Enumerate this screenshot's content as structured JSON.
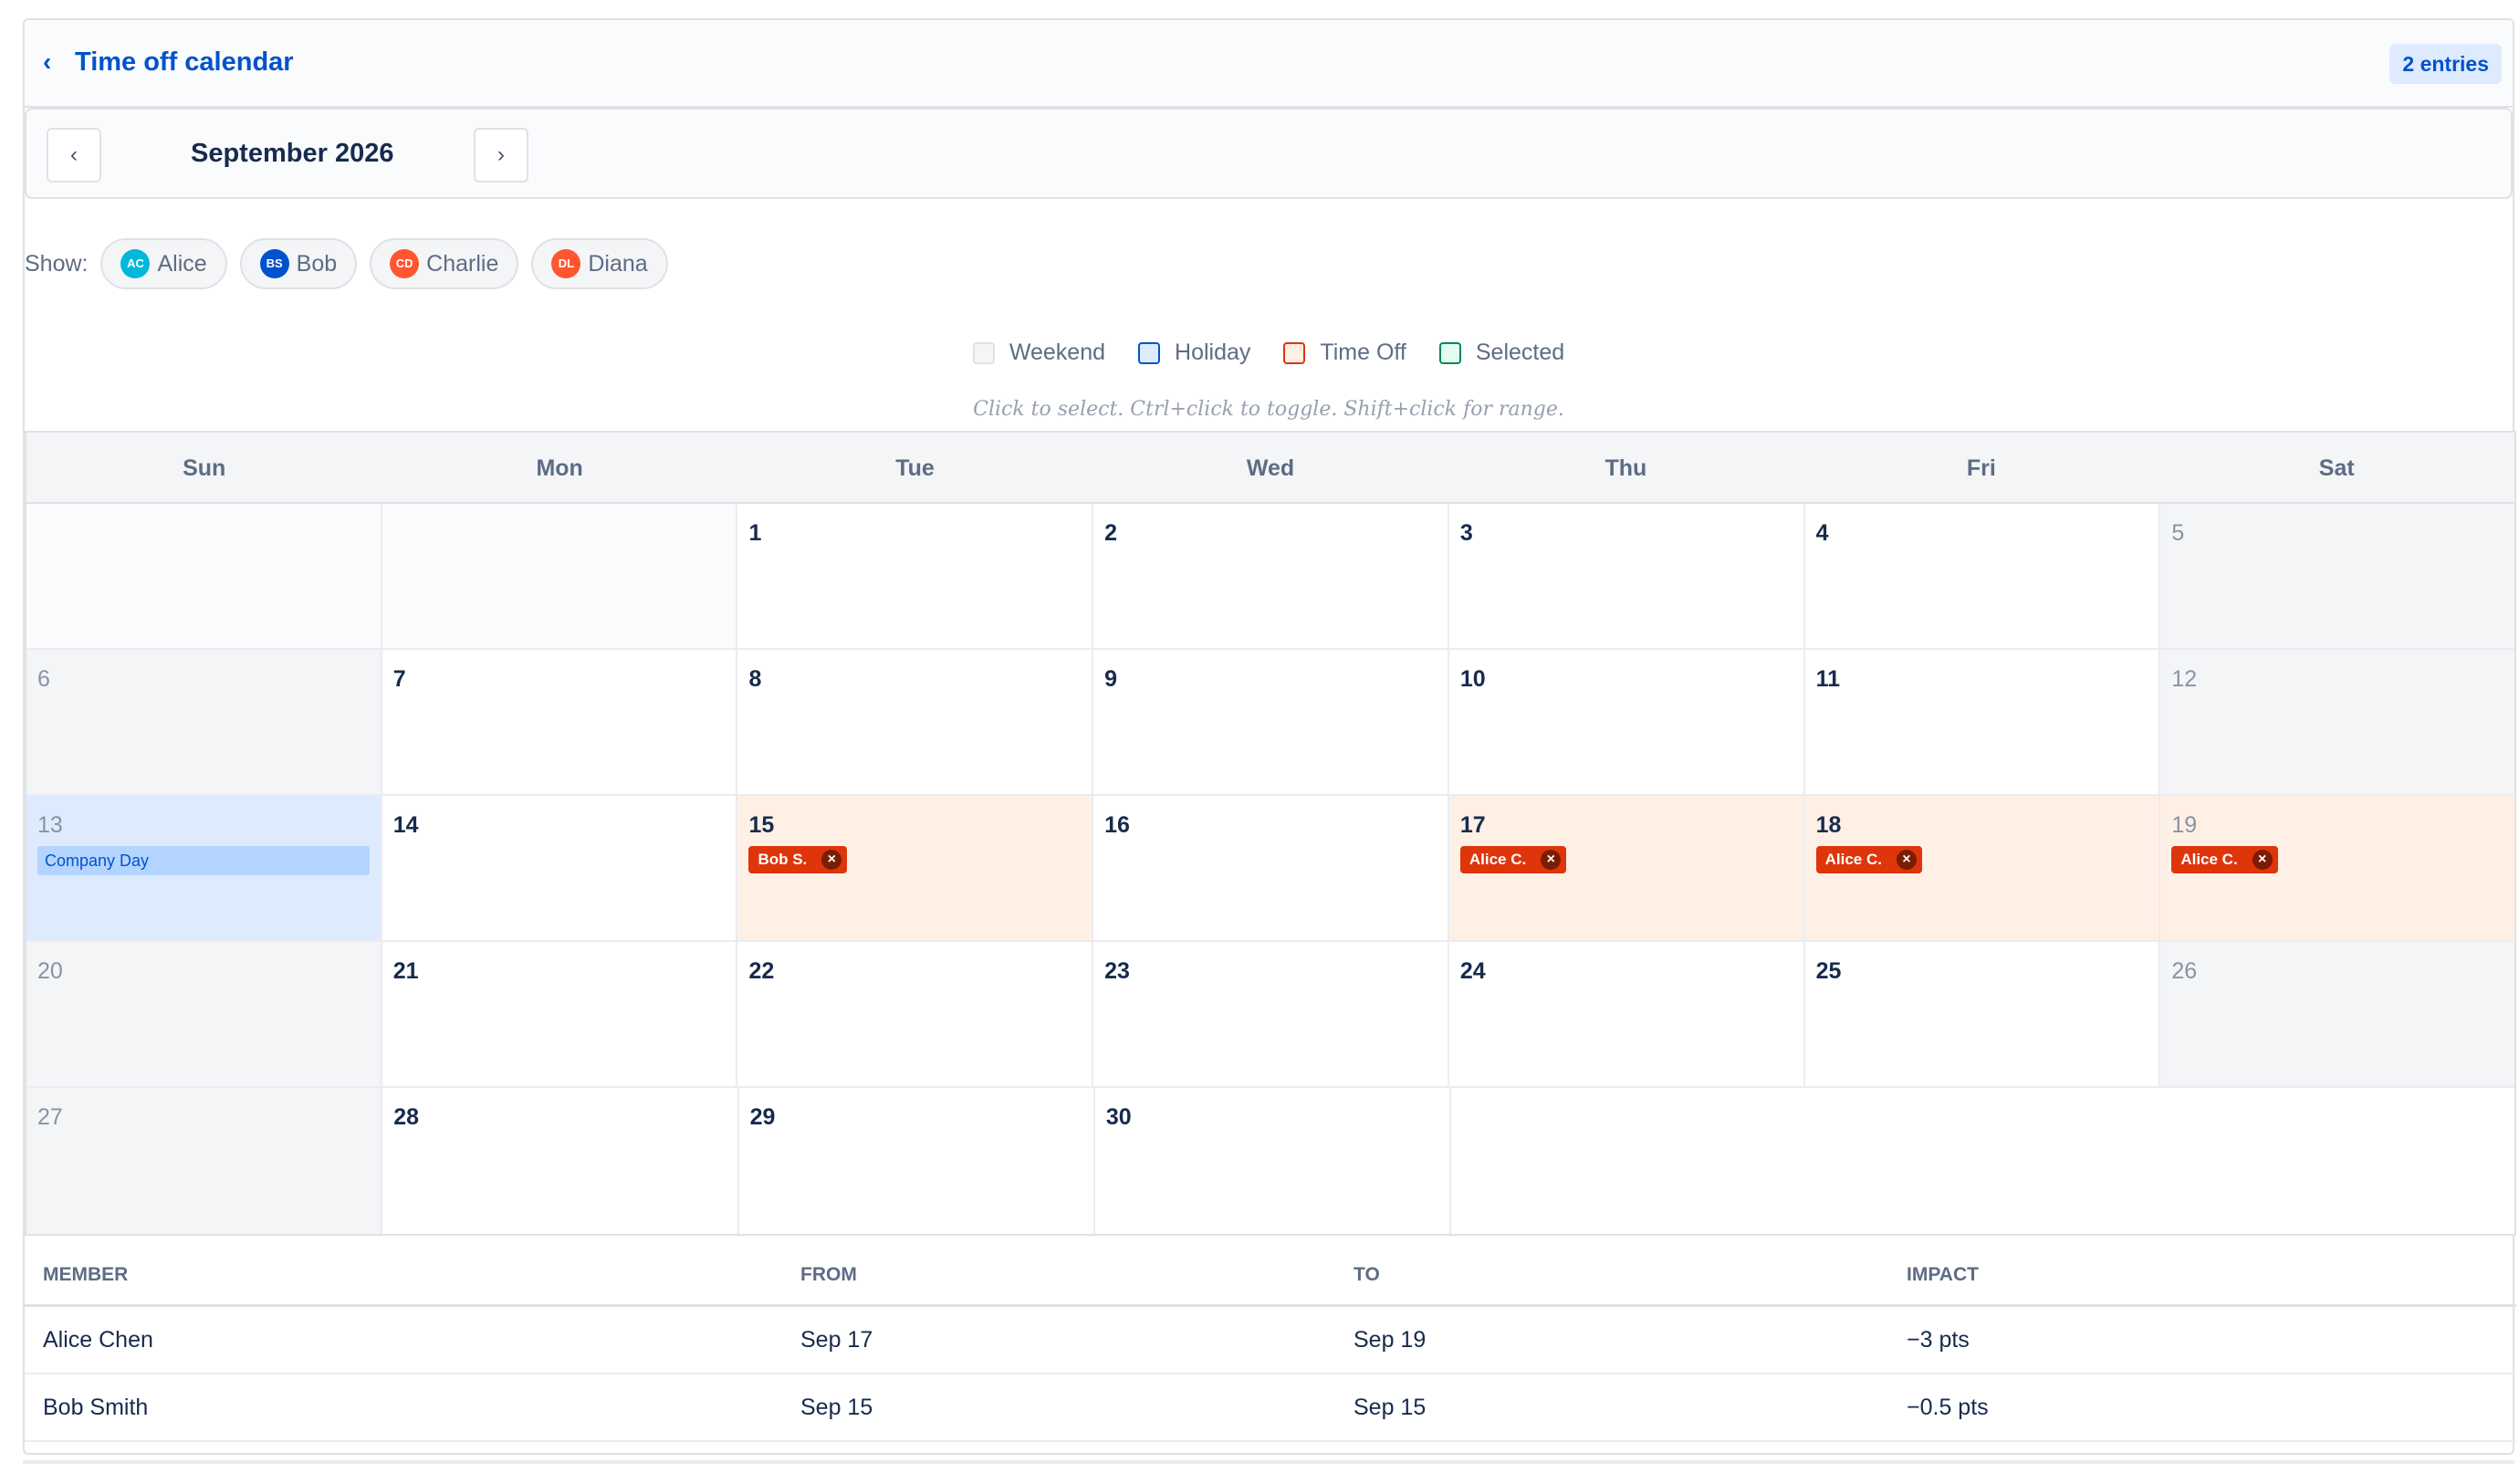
{
  "header": {
    "title": "Time off calendar",
    "entries_badge": "2 entries",
    "back_icon": "chevron-left-icon"
  },
  "nav": {
    "prev": "‹",
    "next": "›",
    "month": "September 2026"
  },
  "show": {
    "label": "Show:",
    "members": [
      {
        "initials": "AC",
        "name": "Alice",
        "color": "#00b8d9"
      },
      {
        "initials": "BS",
        "name": "Bob",
        "color": "#0052cc"
      },
      {
        "initials": "CD",
        "name": "Charlie",
        "color": "#ff5630"
      },
      {
        "initials": "DL",
        "name": "Diana",
        "color": "#ff5630"
      }
    ]
  },
  "legend": [
    {
      "label": "Weekend",
      "fill": "#f4f5f7",
      "border": "#dfe1e6"
    },
    {
      "label": "Holiday",
      "fill": "#deebff",
      "border": "#0052cc"
    },
    {
      "label": "Time Off",
      "fill": "#fff0e6",
      "border": "#de350b"
    },
    {
      "label": "Selected",
      "fill": "#e3fcef",
      "border": "#00875a"
    }
  ],
  "hint": "Click to select. Ctrl+click to toggle. Shift+click for range.",
  "weekdays": [
    "Sun",
    "Mon",
    "Tue",
    "Wed",
    "Thu",
    "Fri",
    "Sat"
  ],
  "weeks": [
    [
      {
        "empty": true
      },
      {
        "empty": true
      },
      {
        "num": "1"
      },
      {
        "num": "2"
      },
      {
        "num": "3"
      },
      {
        "num": "4"
      },
      {
        "num": "5",
        "weekend": true
      }
    ],
    [
      {
        "num": "6",
        "weekend": true
      },
      {
        "num": "7"
      },
      {
        "num": "8"
      },
      {
        "num": "9"
      },
      {
        "num": "10"
      },
      {
        "num": "11"
      },
      {
        "num": "12",
        "weekend": true
      }
    ],
    [
      {
        "num": "13",
        "holiday": "Company Day"
      },
      {
        "num": "14"
      },
      {
        "num": "15",
        "timeoff": "Bob S."
      },
      {
        "num": "16"
      },
      {
        "num": "17",
        "timeoff": "Alice C."
      },
      {
        "num": "18",
        "timeoff": "Alice C."
      },
      {
        "num": "19",
        "timeoff": "Alice C.",
        "sat": true
      }
    ],
    [
      {
        "num": "20",
        "weekend": true
      },
      {
        "num": "21"
      },
      {
        "num": "22"
      },
      {
        "num": "23"
      },
      {
        "num": "24"
      },
      {
        "num": "25"
      },
      {
        "num": "26",
        "weekend": true
      }
    ],
    [
      {
        "num": "27",
        "weekend": true
      },
      {
        "num": "28"
      },
      {
        "num": "29"
      },
      {
        "num": "30"
      },
      {
        "empty": true,
        "trailing": true
      },
      {
        "empty": true,
        "trailing": true
      },
      {
        "empty": true,
        "trailing": true
      }
    ]
  ],
  "remove_glyph": "×",
  "table": {
    "headers": [
      "MEMBER",
      "FROM",
      "TO",
      "IMPACT"
    ],
    "rows": [
      [
        "Alice Chen",
        "Sep 17",
        "Sep 19",
        "−3 pts"
      ],
      [
        "Bob Smith",
        "Sep 15",
        "Sep 15",
        "−0.5 pts"
      ]
    ]
  }
}
